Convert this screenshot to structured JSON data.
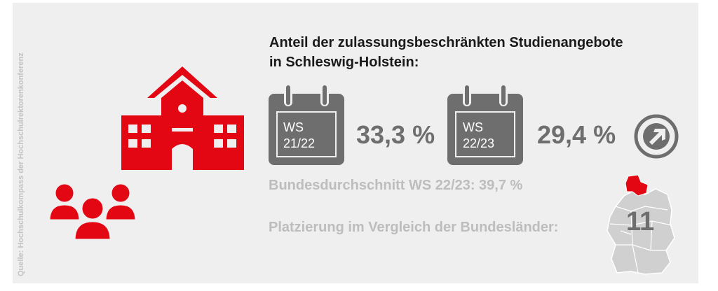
{
  "source": "Quelle: Hochschulkompass der Hochschulrektorenkonferenz",
  "title": {
    "line1": "Anteil der zulassungsbeschränkten Studienangebote",
    "line2": "in Schleswig-Holstein:"
  },
  "semesters": [
    {
      "label_line1": "WS",
      "label_line2": "21/22",
      "value": "33,3 %"
    },
    {
      "label_line1": "WS",
      "label_line2": "22/23",
      "value": "29,4 %"
    }
  ],
  "national_average": "Bundesdurchschnitt WS 22/23: 39,7 %",
  "ranking": {
    "label": "Platzierung im Vergleich der Bundesländer:",
    "value": "11"
  },
  "colors": {
    "accent": "#e30613",
    "dark_gray": "#6e6e6e",
    "light_gray": "#bdbdbd",
    "background": "#efefef"
  },
  "icons": [
    "university-building-icon",
    "people-group-icon",
    "calendar-icon",
    "arrow-right-circle-icon",
    "germany-map-icon"
  ]
}
